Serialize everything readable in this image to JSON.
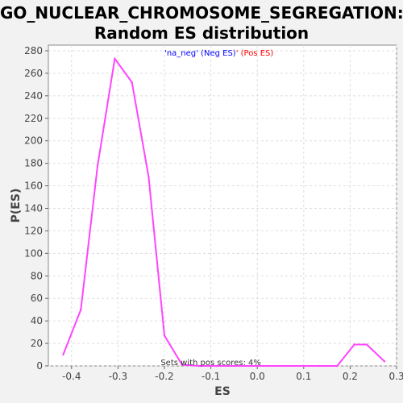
{
  "chart_data": {
    "type": "line",
    "title_line1": "GO_NUCLEAR_CHROMOSOME_SEGREGATION:",
    "title_line2": "Random ES distribution",
    "xlabel": "ES",
    "ylabel": "P(ES)",
    "xlim": [
      -0.45,
      0.3
    ],
    "ylim": [
      0,
      285
    ],
    "xticks": [
      -0.4,
      -0.3,
      -0.2,
      -0.1,
      0.0,
      0.1,
      0.2,
      0.3
    ],
    "xtick_labels": [
      "-0.4",
      "-0.3",
      "-0.2",
      "-0.1",
      "0.0",
      "0.1",
      "0.2",
      "0.3"
    ],
    "yticks": [
      0,
      20,
      40,
      60,
      80,
      100,
      120,
      140,
      160,
      180,
      200,
      220,
      240,
      260,
      280
    ],
    "grid": true,
    "legend": {
      "neg_text": "'na_neg' (Neg ES)",
      "pos_text": "' (Pos ES)",
      "neg_color": "#0000ff",
      "pos_color": "#ff0000",
      "placement": "top-center"
    },
    "annotation": "Sets with pos scores: 4%",
    "line_color": "#ff44ff",
    "series": [
      {
        "x": [
          -0.418,
          -0.38,
          -0.344,
          -0.307,
          -0.27,
          -0.234,
          -0.2,
          -0.162,
          -0.125,
          -0.088,
          -0.05,
          -0.013,
          0.024,
          0.061,
          0.098,
          0.135,
          0.172,
          0.209,
          0.236,
          0.274
        ],
        "values": [
          10,
          50,
          178,
          273,
          252,
          168,
          27,
          1,
          0,
          0,
          0,
          0,
          0,
          0,
          0,
          0,
          0,
          19,
          19,
          4
        ]
      }
    ]
  }
}
